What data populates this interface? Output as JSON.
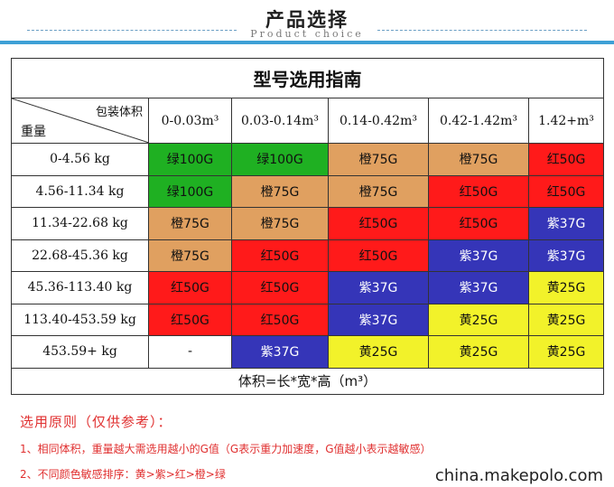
{
  "header": {
    "title": "产品选择",
    "subtitle": "Product choice",
    "bar_color": "#3ea0d6"
  },
  "table": {
    "title": "型号选用指南",
    "corner_top": "包装体积",
    "corner_bottom": "重量",
    "volume_columns": [
      "0-0.03m³",
      "0.03-0.14m³",
      "0.14-0.42m³",
      "0.42-1.42m³",
      "1.42+m³"
    ],
    "rows": [
      {
        "weight": "0-4.56 kg",
        "cells": [
          "绿100G",
          "绿100G",
          "橙75G",
          "橙75G",
          "红50G"
        ]
      },
      {
        "weight": "4.56-11.34 kg",
        "cells": [
          "绿100G",
          "橙75G",
          "橙75G",
          "红50G",
          "红50G"
        ]
      },
      {
        "weight": "11.34-22.68 kg",
        "cells": [
          "橙75G",
          "橙75G",
          "红50G",
          "红50G",
          "紫37G"
        ]
      },
      {
        "weight": "22.68-45.36 kg",
        "cells": [
          "橙75G",
          "红50G",
          "红50G",
          "紫37G",
          "紫37G"
        ]
      },
      {
        "weight": "45.36-113.40 kg",
        "cells": [
          "红50G",
          "红50G",
          "紫37G",
          "紫37G",
          "黄25G"
        ]
      },
      {
        "weight": "113.40-453.59 kg",
        "cells": [
          "红50G",
          "红50G",
          "紫37G",
          "黄25G",
          "黄25G"
        ]
      },
      {
        "weight": "453.59+ kg",
        "cells": [
          "-",
          "紫37G",
          "黄25G",
          "黄25G",
          "黄25G"
        ]
      }
    ],
    "footer": "体积=长*宽*高（m³）"
  },
  "colors": {
    "green": "#1fb022",
    "orange": "#e0a060",
    "red": "#ff1a1a",
    "purple": "#3535b8",
    "yellow": "#f2f22a",
    "empty": "#ffffff"
  },
  "notes": {
    "title": "选用原则（仅供参考）：",
    "items": [
      "1、相同体积，重量越大需选用越小的G值（G表示重力加速度，G值越小表示越敏感）",
      "2、不同颜色敏感排序：黄>紫>红>橙>绿"
    ]
  },
  "watermark": "china.makepolo.com"
}
